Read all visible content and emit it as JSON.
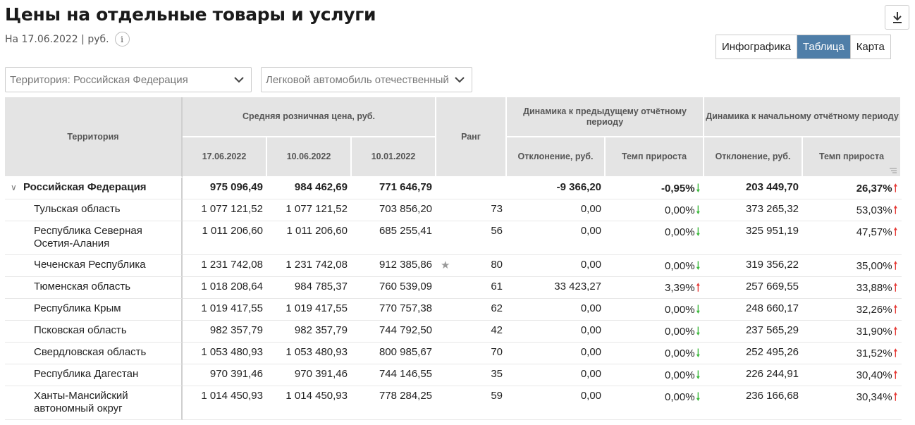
{
  "header": {
    "title": "Цены на отдельные товары и услуги",
    "subtitle": "На 17.06.2022 | руб.",
    "info_label": "i"
  },
  "view_tabs": [
    {
      "label": "Инфографика",
      "active": false
    },
    {
      "label": "Таблица",
      "active": true
    },
    {
      "label": "Карта",
      "active": false
    }
  ],
  "filters": {
    "territory": "Территория: Российская  Федерация",
    "product": "Легковой автомобиль отечественный"
  },
  "table": {
    "headers": {
      "territory": "Территория",
      "avg_price": "Средняя розничная цена, руб.",
      "rank": "Ранг",
      "dyn_prev": "Динамика к предыдущему отчётному периоду",
      "dyn_start": "Динамика к начальному отчётному периоду",
      "date1": "17.06.2022",
      "date2": "10.06.2022",
      "date3": "10.01.2022",
      "dev_prev": "Отклонение, руб.",
      "rate_prev": "Темп прироста",
      "dev_start": "Отклонение, руб.",
      "rate_start": "Темп прироста"
    },
    "total": {
      "name": "Российская Федерация",
      "p1": "975 096,49",
      "p2": "984 462,69",
      "p3": "771 646,79",
      "rank": "",
      "dev_prev": "-9 366,20",
      "rate_prev": "-0,95%",
      "dev_start": "203 449,70",
      "rate_start": "26,37%"
    },
    "rows": [
      {
        "name": "Тульская область",
        "p1": "1 077 121,52",
        "p2": "1 077 121,52",
        "p3": "703 856,20",
        "rank": "73",
        "dev_prev": "0,00",
        "rate_prev": "0,00%",
        "dev_start": "373 265,32",
        "rate_start": "53,03%"
      },
      {
        "name": "Республика Северная Осетия-Алания",
        "p1": "1 011 206,60",
        "p2": "1 011 206,60",
        "p3": "685 255,41",
        "rank": "56",
        "dev_prev": "0,00",
        "rate_prev": "0,00%",
        "dev_start": "325 951,19",
        "rate_start": "47,57%"
      },
      {
        "name": "Чеченская Республика",
        "p1": "1 231 742,08",
        "p2": "1 231 742,08",
        "p3": "912 385,86",
        "rank": "80",
        "dev_prev": "0,00",
        "rate_prev": "0,00%",
        "dev_start": "319 356,22",
        "rate_start": "35,00%"
      },
      {
        "name": "Тюменская область",
        "p1": "1 018 208,64",
        "p2": "984 785,37",
        "p3": "760 539,09",
        "rank": "61",
        "dev_prev": "33 423,27",
        "rate_prev": "3,39%",
        "dev_start": "257 669,55",
        "rate_start": "33,88%"
      },
      {
        "name": "Республика Крым",
        "p1": "1 019 417,55",
        "p2": "1 019 417,55",
        "p3": "770 757,38",
        "rank": "62",
        "dev_prev": "0,00",
        "rate_prev": "0,00%",
        "dev_start": "248 660,17",
        "rate_start": "32,26%"
      },
      {
        "name": "Псковская область",
        "p1": "982 357,79",
        "p2": "982 357,79",
        "p3": "744 792,50",
        "rank": "42",
        "dev_prev": "0,00",
        "rate_prev": "0,00%",
        "dev_start": "237 565,29",
        "rate_start": "31,90%"
      },
      {
        "name": "Свердловская область",
        "p1": "1 053 480,93",
        "p2": "1 053 480,93",
        "p3": "800 985,67",
        "rank": "70",
        "dev_prev": "0,00",
        "rate_prev": "0,00%",
        "dev_start": "252 495,26",
        "rate_start": "31,52%"
      },
      {
        "name": "Республика Дагестан",
        "p1": "970 391,46",
        "p2": "970 391,46",
        "p3": "744 146,55",
        "rank": "35",
        "dev_prev": "0,00",
        "rate_prev": "0,00%",
        "dev_start": "226 244,91",
        "rate_start": "30,40%"
      },
      {
        "name": "Ханты-Мансийский автономный округ",
        "p1": "1 014 450,93",
        "p2": "1 014 450,93",
        "p3": "778 284,25",
        "rank": "59",
        "dev_prev": "0,00",
        "rate_prev": "0,00%",
        "dev_start": "236 166,68",
        "rate_start": "30,34%"
      }
    ]
  },
  "icons": {
    "download": "download-icon",
    "chevron": "chevron-down-icon",
    "arrow_down": "arrow-down-icon",
    "arrow_up": "arrow-up-icon",
    "star": "star-icon",
    "filter": "filter-icon"
  },
  "colors": {
    "accent": "#4f7ea8",
    "down_arrow": "#3cb83c",
    "up_arrow": "#e53935",
    "header_bg": "#e4e4e4"
  }
}
